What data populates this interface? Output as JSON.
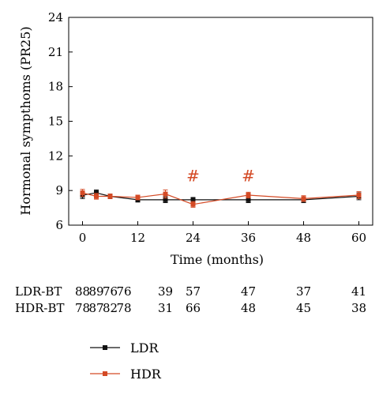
{
  "chart_data": {
    "type": "line",
    "title": "",
    "xlabel": "Time (months)",
    "ylabel": "Hormonal sympthoms (PR25)",
    "xlim": [
      -3,
      63
    ],
    "ylim": [
      6,
      24
    ],
    "xticks": [
      "0",
      "12",
      "24",
      "36",
      "48",
      "60"
    ],
    "yticks": [
      "6",
      "9",
      "12",
      "15",
      "18",
      "21",
      "24"
    ],
    "series": [
      {
        "name": "LDR",
        "color": "#111111",
        "x": [
          0,
          3,
          6,
          12,
          18,
          24,
          36,
          48,
          60
        ],
        "y": [
          8.6,
          8.8,
          8.5,
          8.2,
          8.2,
          8.2,
          8.2,
          8.2,
          8.5
        ],
        "err": [
          0.3,
          0.25,
          0.2,
          0.2,
          0.25,
          0.2,
          0.25,
          0.25,
          0.3
        ]
      },
      {
        "name": "HDR",
        "color": "#d44a25",
        "x": [
          0,
          3,
          6,
          12,
          18,
          24,
          36,
          48,
          60
        ],
        "y": [
          8.8,
          8.5,
          8.5,
          8.4,
          8.7,
          7.8,
          8.6,
          8.3,
          8.6
        ],
        "err": [
          0.3,
          0.25,
          0.2,
          0.2,
          0.35,
          0.25,
          0.25,
          0.25,
          0.3
        ]
      }
    ],
    "annotations": [
      {
        "text": "#",
        "x": 24,
        "y": 9.8,
        "color": "#d44a25"
      },
      {
        "text": "#",
        "x": 36,
        "y": 9.8,
        "color": "#d44a25"
      }
    ],
    "risk_table": {
      "x": [
        0,
        3,
        6,
        9,
        18,
        24,
        36,
        48,
        60
      ],
      "rows": [
        {
          "label": "LDR-BT",
          "values": [
            "88",
            "89",
            "76",
            "76",
            "39",
            "57",
            "47",
            "37",
            "41"
          ]
        },
        {
          "label": "HDR-BT",
          "values": [
            "78",
            "87",
            "82",
            "78",
            "31",
            "66",
            "48",
            "45",
            "38"
          ]
        }
      ]
    },
    "legend": {
      "placement": "below",
      "entries": [
        "LDR",
        "HDR"
      ]
    }
  }
}
